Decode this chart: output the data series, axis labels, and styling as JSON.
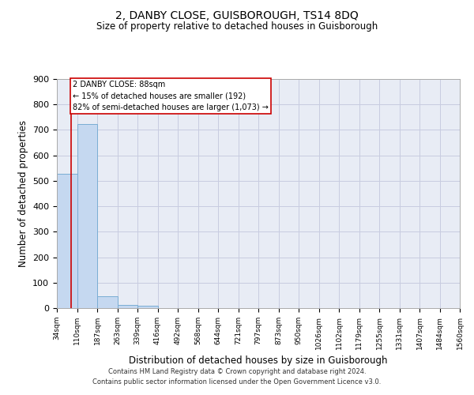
{
  "title1": "2, DANBY CLOSE, GUISBOROUGH, TS14 8DQ",
  "title2": "Size of property relative to detached houses in Guisborough",
  "xlabel": "Distribution of detached houses by size in Guisborough",
  "ylabel": "Number of detached properties",
  "bin_labels": [
    "34sqm",
    "110sqm",
    "187sqm",
    "263sqm",
    "339sqm",
    "416sqm",
    "492sqm",
    "568sqm",
    "644sqm",
    "721sqm",
    "797sqm",
    "873sqm",
    "950sqm",
    "1026sqm",
    "1102sqm",
    "1179sqm",
    "1255sqm",
    "1331sqm",
    "1407sqm",
    "1484sqm",
    "1560sqm"
  ],
  "bar_values": [
    527,
    723,
    48,
    11,
    10,
    0,
    0,
    0,
    0,
    0,
    0,
    0,
    0,
    0,
    0,
    0,
    0,
    0,
    0,
    0
  ],
  "bar_color": "#c5d8f0",
  "bar_edge_color": "#7aadd4",
  "grid_color": "#c8cce0",
  "background_color": "#e8ecf5",
  "property_line_color": "#cc0000",
  "annotation_text": "2 DANBY CLOSE: 88sqm\n← 15% of detached houses are smaller (192)\n82% of semi-detached houses are larger (1,073) →",
  "annotation_box_color": "#ffffff",
  "annotation_box_edge": "#cc0000",
  "ylim": [
    0,
    900
  ],
  "yticks": [
    0,
    100,
    200,
    300,
    400,
    500,
    600,
    700,
    800,
    900
  ],
  "footer1": "Contains HM Land Registry data © Crown copyright and database right 2024.",
  "footer2": "Contains public sector information licensed under the Open Government Licence v3.0."
}
